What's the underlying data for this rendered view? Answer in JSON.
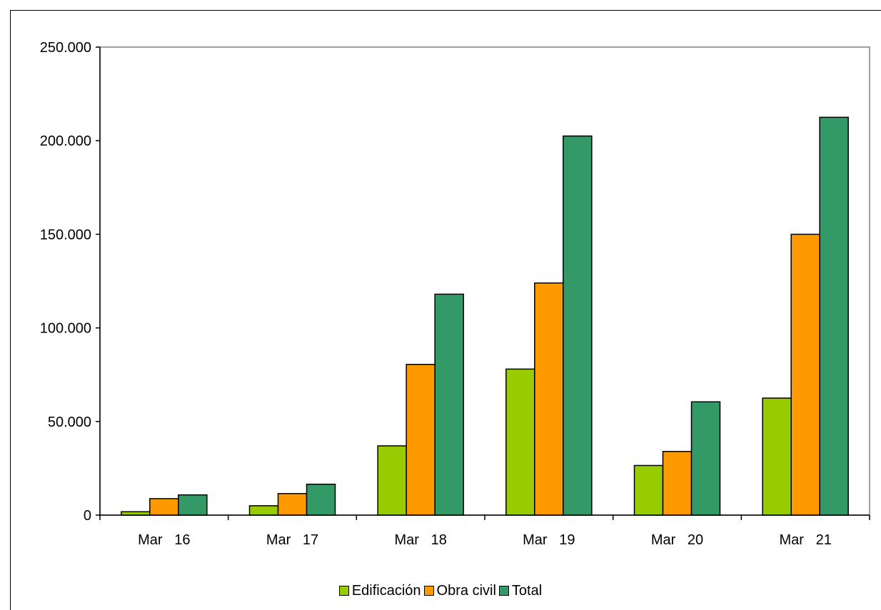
{
  "chart_data": {
    "type": "bar",
    "categories": [
      "Mar   16",
      "Mar   17",
      "Mar   18",
      "Mar   19",
      "Mar   20",
      "Mar   21"
    ],
    "series": [
      {
        "name": "Edificación",
        "color": "#99cc00",
        "values": [
          1800,
          5000,
          37000,
          78000,
          26500,
          62500
        ]
      },
      {
        "name": "Obra civil",
        "color": "#ff9900",
        "values": [
          8800,
          11500,
          80500,
          124000,
          34000,
          150000
        ]
      },
      {
        "name": "Total",
        "color": "#339966",
        "values": [
          10800,
          16500,
          118000,
          202500,
          60500,
          212500
        ]
      }
    ],
    "ylim": [
      0,
      250000
    ],
    "yticks": [
      0,
      50000,
      100000,
      150000,
      200000,
      250000
    ],
    "ytick_labels": [
      "0",
      "50.000",
      "100.000",
      "150.000",
      "200.000",
      "250.000"
    ],
    "xlabel": "",
    "ylabel": "",
    "title": "",
    "legend_position": "bottom",
    "grid": false
  }
}
